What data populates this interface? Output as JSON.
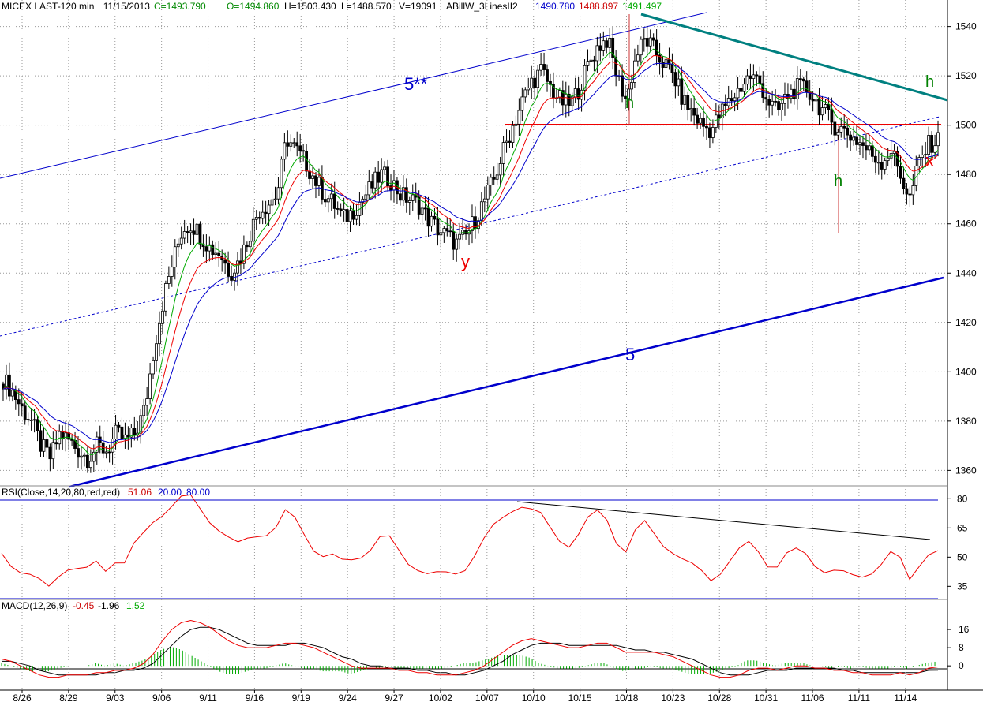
{
  "header": {
    "symbol": "MICEX LAST-120 min",
    "date": "11/15/2013",
    "close": "C=1493.790",
    "open": "O=1494.860",
    "high": "H=1503.430",
    "low": "L=1488.570",
    "volume": "V=19091",
    "indicator": "ABillW_3LinesII2",
    "ind_v1": "1490.780",
    "ind_v2": "1488.897",
    "ind_v3": "1491.497"
  },
  "rsi_header": {
    "label": "RSI(Close,14,20,80,red,red)",
    "v1": "51.06",
    "v2": "20.00",
    "v3": "80.00"
  },
  "macd_header": {
    "label": "MACD(12,26,9)",
    "v1": "-0.45",
    "v2": "-1.96",
    "v3": "1.52"
  },
  "annotations": {
    "wave_5_upper": "5**",
    "wave_5_lower": "5",
    "y": "y",
    "x": "x",
    "h1": "h",
    "h2": "h",
    "h3": "h"
  },
  "colors": {
    "blue": "#0000cc",
    "red": "#ee0000",
    "green": "#00aa00",
    "teal": "#008080",
    "grid": "#999999"
  },
  "chart_data": [
    {
      "type": "candlestick",
      "panel": "price",
      "ylim": [
        1355,
        1545
      ],
      "y_ticks": [
        1360,
        1380,
        1400,
        1420,
        1440,
        1460,
        1480,
        1500,
        1520,
        1540
      ],
      "x_tick_labels": [
        "8/26",
        "8/29",
        "9/03",
        "9/06",
        "9/11",
        "9/16",
        "9/19",
        "9/24",
        "9/27",
        "10/02",
        "10/07",
        "10/10",
        "10/15",
        "10/18",
        "10/23",
        "10/28",
        "10/31",
        "11/06",
        "11/11",
        "11/14"
      ],
      "close_path": [
        1397,
        1392,
        1385,
        1380,
        1370,
        1365,
        1375,
        1372,
        1368,
        1365,
        1370,
        1368,
        1375,
        1372,
        1375,
        1385,
        1410,
        1430,
        1445,
        1458,
        1460,
        1455,
        1450,
        1448,
        1440,
        1445,
        1455,
        1465,
        1468,
        1472,
        1495,
        1490,
        1485,
        1478,
        1472,
        1468,
        1462,
        1465,
        1470,
        1475,
        1480,
        1478,
        1472,
        1470,
        1468,
        1462,
        1458,
        1455,
        1452,
        1455,
        1462,
        1470,
        1478,
        1490,
        1500,
        1510,
        1518,
        1522,
        1515,
        1510,
        1508,
        1515,
        1525,
        1532,
        1535,
        1520,
        1510,
        1528,
        1535,
        1530,
        1525,
        1520,
        1510,
        1505,
        1500,
        1498,
        1505,
        1510,
        1515,
        1520,
        1518,
        1510,
        1505,
        1512,
        1515,
        1515,
        1510,
        1505,
        1500,
        1498,
        1495,
        1492,
        1488,
        1485,
        1490,
        1480,
        1470,
        1485,
        1492,
        1494
      ],
      "grid": true,
      "y_axis_side": "right"
    },
    {
      "type": "line",
      "panel": "rsi",
      "ylim": [
        25,
        85
      ],
      "y_ticks": [
        35,
        50,
        65,
        80
      ],
      "levels": [
        20,
        80
      ],
      "values": [
        52,
        48,
        44,
        40,
        36,
        34,
        42,
        46,
        44,
        42,
        46,
        44,
        50,
        48,
        55,
        60,
        68,
        74,
        78,
        80,
        79,
        74,
        70,
        66,
        60,
        55,
        58,
        62,
        64,
        66,
        72,
        68,
        62,
        56,
        52,
        50,
        46,
        48,
        52,
        56,
        60,
        58,
        52,
        48,
        46,
        42,
        40,
        40,
        42,
        46,
        52,
        58,
        64,
        70,
        76,
        78,
        74,
        70,
        64,
        60,
        58,
        62,
        68,
        72,
        70,
        60,
        54,
        62,
        66,
        62,
        58,
        54,
        48,
        44,
        42,
        40,
        44,
        48,
        52,
        56,
        54,
        48,
        46,
        50,
        52,
        52,
        48,
        44,
        42,
        40,
        40,
        42,
        44,
        46,
        50,
        48,
        40,
        48,
        52,
        51
      ]
    },
    {
      "type": "line",
      "panel": "macd",
      "ylim": [
        -10,
        24
      ],
      "y_ticks": [
        0,
        8,
        16
      ],
      "series": [
        {
          "values": [
            3,
            2,
            0,
            -2,
            -4,
            -5,
            -5,
            -4,
            -4,
            -4,
            -3,
            -3,
            -2,
            -2,
            -1,
            1,
            5,
            11,
            16,
            19,
            20,
            19,
            17,
            14,
            11,
            9,
            8,
            8,
            8,
            9,
            10,
            10,
            9,
            8,
            6,
            4,
            2,
            0,
            -1,
            -1,
            -1,
            -1,
            -2,
            -2,
            -3,
            -3,
            -4,
            -4,
            -4,
            -3,
            -2,
            0,
            3,
            6,
            9,
            11,
            12,
            11,
            10,
            9,
            8,
            8,
            9,
            10,
            10,
            8,
            6,
            6,
            6,
            6,
            5,
            4,
            2,
            0,
            -2,
            -4,
            -5,
            -5,
            -4,
            -2,
            -1,
            -1,
            -2,
            -1,
            0,
            0,
            -1,
            -1,
            -2,
            -2,
            -3,
            -3,
            -4,
            -4,
            -4,
            -3,
            -4,
            -3,
            -1,
            -0.45
          ]
        },
        {
          "values": [
            2,
            2,
            1,
            0,
            -2,
            -3,
            -4,
            -4,
            -4,
            -4,
            -4,
            -3,
            -3,
            -2,
            -2,
            -1,
            1,
            5,
            9,
            13,
            16,
            17,
            17,
            16,
            14,
            12,
            10,
            9,
            9,
            9,
            9,
            10,
            10,
            9,
            8,
            6,
            4,
            3,
            1,
            0,
            0,
            -1,
            -1,
            -1,
            -2,
            -2,
            -3,
            -3,
            -4,
            -4,
            -3,
            -2,
            0,
            2,
            5,
            7,
            9,
            10,
            10,
            10,
            9,
            9,
            9,
            9,
            9,
            9,
            8,
            7,
            7,
            6,
            6,
            5,
            4,
            3,
            1,
            -1,
            -3,
            -4,
            -4,
            -4,
            -3,
            -2,
            -2,
            -2,
            -1,
            -1,
            -1,
            -1,
            -1,
            -2,
            -2,
            -3,
            -3,
            -3,
            -3,
            -3,
            -3,
            -3,
            -2,
            -1.96
          ]
        }
      ]
    }
  ]
}
